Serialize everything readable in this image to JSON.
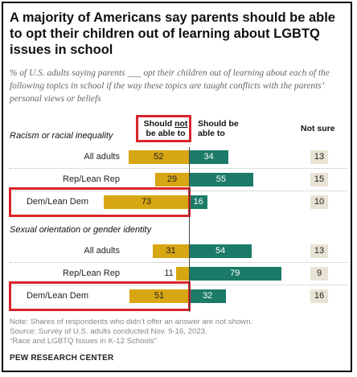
{
  "title": "A majority of Americans say parents should be able to opt their children out of learning about LGBTQ issues in school",
  "subtitle": "% of U.S. adults saying parents ___ opt their children out of learning about each of the following topics in school if the way these topics are taught conflicts with the parents’ personal views or beliefs",
  "chart_data": {
    "type": "bar",
    "orientation": "horizontal-diverging",
    "columns": {
      "not_able": [
        "Should ",
        "not",
        " be able to"
      ],
      "able": "Should be able to",
      "not_sure": "Not sure"
    },
    "groups": [
      {
        "label": "Racism or racial inequality",
        "rows": [
          {
            "label": "All adults",
            "not_able": 52,
            "able": 34,
            "not_sure": 13,
            "highlighted": false
          },
          {
            "label": "Rep/Lean Rep",
            "not_able": 29,
            "able": 55,
            "not_sure": 15,
            "highlighted": false
          },
          {
            "label": "Dem/Lean Dem",
            "not_able": 73,
            "able": 16,
            "not_sure": 10,
            "highlighted": true
          }
        ]
      },
      {
        "label": "Sexual orientation or gender identity",
        "rows": [
          {
            "label": "All adults",
            "not_able": 31,
            "able": 54,
            "not_sure": 13,
            "highlighted": false
          },
          {
            "label": "Rep/Lean Rep",
            "not_able": 11,
            "able": 79,
            "not_sure": 9,
            "highlighted": false
          },
          {
            "label": "Dem/Lean Dem",
            "not_able": 51,
            "able": 32,
            "not_sure": 16,
            "highlighted": true
          }
        ]
      }
    ],
    "colors": {
      "not_able": "#d7a613",
      "able": "#1b7a68",
      "not_sure_bg": "#e8e3d3",
      "highlight": "#d9252a"
    }
  },
  "notes": [
    "Note: Shares of respondents who didn’t offer an answer are not shown.",
    "Source: Survey of U.S. adults conducted Nov. 9-16, 2023.",
    "“Race and LGBTQ Issues in K-12 Schools”"
  ],
  "footer": "PEW RESEARCH CENTER"
}
